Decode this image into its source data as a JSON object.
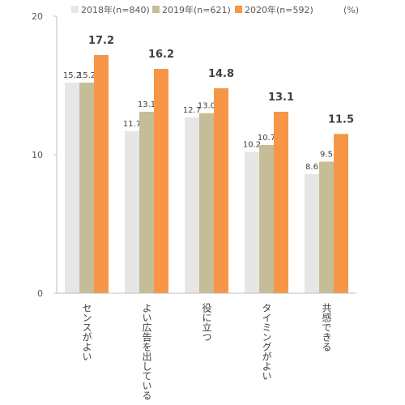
{
  "chart_data": {
    "type": "bar",
    "categories": [
      "センスがよい",
      "よい広告を出している",
      "役に立つ",
      "タイミングがよい",
      "共感できる"
    ],
    "series": [
      {
        "name": "2018年(n=840)",
        "color": "#e7e6e6",
        "values": [
          15.2,
          11.7,
          12.7,
          10.2,
          8.6
        ]
      },
      {
        "name": "2019年(n=621)",
        "color": "#c4bd97",
        "values": [
          15.2,
          13.1,
          13.0,
          10.7,
          9.5
        ]
      },
      {
        "name": "2020年(n=592)",
        "color": "#f79646",
        "values": [
          17.2,
          16.2,
          14.8,
          13.1,
          11.5
        ]
      }
    ],
    "data_labels": [
      [
        "15.2",
        "11.7",
        "12.7",
        "10.2",
        "8.6"
      ],
      [
        "15.2",
        "13.1",
        "13.0",
        "10.7",
        "9.5"
      ],
      [
        "17.2",
        "16.2",
        "14.8",
        "13.1",
        "11.5"
      ]
    ],
    "unit_label": "(%)",
    "ylim": [
      0,
      20
    ],
    "yticks": [
      0,
      10,
      20
    ],
    "ytick_labels": [
      "0",
      "10",
      "20"
    ],
    "grid": false,
    "legend_position": "top"
  }
}
